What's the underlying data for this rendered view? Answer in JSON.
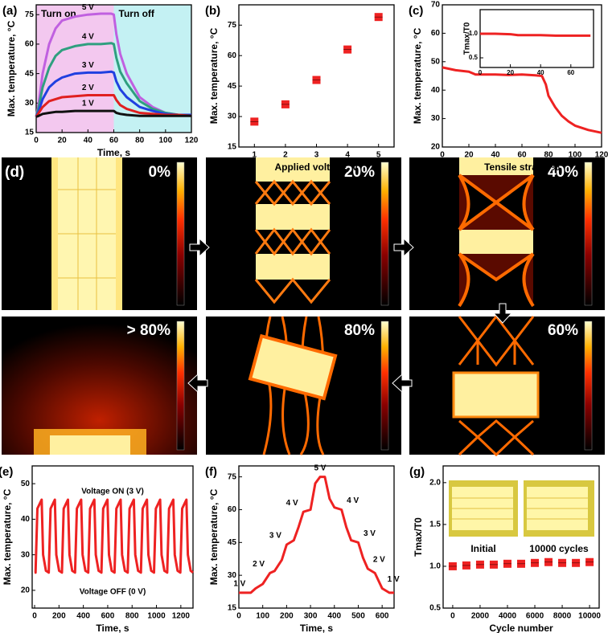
{
  "chart_data": [
    {
      "type": "line",
      "panel_label": "(a)",
      "xlabel": "Time, s",
      "ylabel": "Max. temperature, °C",
      "xlim": [
        0,
        120
      ],
      "xticks": [
        0,
        20,
        40,
        60,
        80,
        100,
        120
      ],
      "ylim": [
        15,
        80
      ],
      "yticks": [
        15,
        30,
        45,
        60,
        75
      ],
      "regions": [
        {
          "label": "Turn on",
          "from": 0,
          "to": 60,
          "color": "#f3c8ef"
        },
        {
          "label": "Turn off",
          "from": 60,
          "to": 120,
          "color": "#c4f1f3"
        }
      ],
      "x": [
        0,
        2,
        5,
        10,
        15,
        20,
        30,
        40,
        50,
        58,
        60,
        62,
        65,
        70,
        80,
        90,
        100,
        110,
        120
      ],
      "series": [
        {
          "name": "5 V",
          "color": "#c060e0",
          "values": [
            23,
            30,
            45,
            60,
            68,
            72,
            74,
            75,
            75.5,
            75.5,
            75,
            65,
            55,
            45,
            33,
            28,
            25,
            24,
            24
          ]
        },
        {
          "name": "4 V",
          "color": "#2f9f7f",
          "values": [
            23,
            28,
            38,
            48,
            54,
            57,
            59,
            60,
            60,
            60.5,
            60,
            53,
            46,
            40,
            31,
            27,
            25,
            24,
            24
          ]
        },
        {
          "name": "3 V",
          "color": "#2040e0",
          "values": [
            23,
            26,
            32,
            38,
            41,
            43,
            45,
            45.5,
            45.5,
            46,
            45.5,
            41,
            37,
            33,
            28,
            26,
            24.5,
            24,
            24
          ]
        },
        {
          "name": "2 V",
          "color": "#e02020",
          "values": [
            23,
            25,
            28,
            31,
            32,
            33,
            33.5,
            34,
            34,
            34,
            34,
            31.5,
            29,
            27,
            25,
            24.5,
            24,
            24,
            23.5
          ]
        },
        {
          "name": "1 V",
          "color": "#111111",
          "values": [
            23,
            23.5,
            24.5,
            25,
            25.5,
            25.5,
            26,
            26,
            26,
            26,
            26,
            25,
            24.5,
            24,
            23.5,
            23.5,
            23.5,
            23.5,
            23.5
          ]
        }
      ]
    },
    {
      "type": "scatter",
      "panel_label": "(b)",
      "xlabel": "Applied voltage, V",
      "ylabel": "Max. temperature, °C",
      "xlim": [
        0.5,
        5.5
      ],
      "xticks": [
        1,
        2,
        3,
        4,
        5
      ],
      "ylim": [
        15,
        85
      ],
      "yticks": [
        15,
        30,
        45,
        60,
        75
      ],
      "color": "#ee2222",
      "x": [
        1,
        2,
        3,
        4,
        5
      ],
      "values": [
        27.5,
        36,
        48,
        63,
        79
      ]
    },
    {
      "type": "line",
      "panel_label": "(c)",
      "xlabel": "Tensile strain, %",
      "ylabel": "Max. temperature, °C",
      "xlim": [
        0,
        120
      ],
      "xticks": [
        0,
        20,
        40,
        60,
        80,
        100,
        120
      ],
      "ylim": [
        20,
        70
      ],
      "yticks": [
        20,
        30,
        40,
        50,
        60,
        70
      ],
      "x": [
        0,
        10,
        20,
        25,
        30,
        40,
        50,
        60,
        70,
        75,
        78,
        80,
        85,
        90,
        95,
        100,
        110,
        120
      ],
      "series": [
        {
          "color": "#ee2222",
          "values": [
            48,
            47,
            46.5,
            45.5,
            45.5,
            45.5,
            45.3,
            45.5,
            45.2,
            45,
            42,
            38,
            34,
            31,
            29,
            27.5,
            26,
            25
          ]
        }
      ],
      "inset": {
        "type": "line",
        "ylabel": "Tmax/T0",
        "xlim": [
          0,
          75
        ],
        "xticks": [
          0,
          20,
          40,
          60
        ],
        "ylim": [
          0.3,
          1.5
        ],
        "yticks": [
          0.5,
          {
            "value": 1,
            "label": "1.0"
          }
        ],
        "x": [
          0,
          10,
          20,
          25,
          30,
          40,
          50,
          60,
          70,
          73
        ],
        "series": [
          {
            "color": "#ee2222",
            "values": [
              1.0,
              1.0,
              0.99,
              0.97,
              0.97,
              0.97,
              0.96,
              0.96,
              0.96,
              0.96
            ]
          }
        ]
      }
    },
    {
      "type": "line",
      "panel_label": "(e)",
      "xlabel": "Time, s",
      "ylabel": "Max. temperature, °C",
      "xlim": [
        -20,
        1300
      ],
      "xticks": [
        0,
        200,
        400,
        600,
        800,
        1000,
        1200
      ],
      "ylim": [
        15,
        55
      ],
      "yticks": [
        20,
        30,
        40,
        50
      ],
      "annotations": [
        "Voltage ON (3 V)",
        "Voltage OFF (0 V)"
      ],
      "x": [
        0,
        8,
        23,
        58,
        70,
        93,
        116,
        131,
        166,
        178,
        201,
        224,
        239,
        274,
        286,
        309,
        332,
        347,
        382,
        394,
        417,
        440,
        455,
        490,
        502,
        525,
        548,
        563,
        598,
        610,
        633,
        656,
        671,
        706,
        718,
        741,
        764,
        779,
        814,
        826,
        849,
        872,
        887,
        922,
        934,
        957,
        980,
        995,
        1030,
        1042,
        1065,
        1088,
        1103,
        1138,
        1150,
        1173,
        1196,
        1211,
        1246,
        1258,
        1281,
        1300
      ],
      "series": [
        {
          "color": "#ee2222",
          "values": [
            25,
            25,
            43,
            45.5,
            30,
            25.5,
            25,
            43,
            45.5,
            30,
            25.5,
            25,
            43,
            45.5,
            30,
            25.5,
            25,
            43,
            45.5,
            30,
            25.5,
            25,
            43,
            45.5,
            30,
            25.5,
            25,
            43,
            45.5,
            30,
            25.5,
            25,
            43,
            45.5,
            30,
            25.5,
            25,
            43,
            45.5,
            30,
            25.5,
            25,
            43,
            45.5,
            30,
            25.5,
            25,
            43,
            45.5,
            30,
            25.5,
            25,
            43,
            45.5,
            30,
            25.5,
            25,
            43,
            45.5,
            30,
            25.5,
            25
          ]
        }
      ]
    },
    {
      "type": "line",
      "panel_label": "(f)",
      "xlabel": "Time, s",
      "ylabel": "Max. temperature, °C",
      "xlim": [
        0,
        650
      ],
      "xticks": [
        0,
        100,
        200,
        300,
        400,
        500,
        600
      ],
      "ylim": [
        15,
        80
      ],
      "yticks": [
        15,
        30,
        45,
        60,
        75
      ],
      "curve_labels": [
        "1 V",
        "2 V",
        "3 V",
        "4 V",
        "5 V",
        "4 V",
        "3 V",
        "2 V",
        "1 V"
      ],
      "x": [
        0,
        50,
        70,
        100,
        130,
        150,
        180,
        200,
        230,
        250,
        270,
        300,
        320,
        340,
        360,
        380,
        400,
        430,
        450,
        470,
        500,
        520,
        540,
        570,
        600,
        630,
        650
      ],
      "series": [
        {
          "color": "#ee2222",
          "values": [
            22,
            22,
            24,
            26,
            31,
            32,
            37,
            44,
            46,
            52,
            59,
            60,
            72,
            75,
            75,
            65,
            61,
            60,
            52,
            46,
            45,
            38,
            33,
            31,
            24,
            22,
            22
          ]
        }
      ]
    },
    {
      "type": "scatter",
      "panel_label": "(g)",
      "xlabel": "Cycle number",
      "ylabel": "Tmax/T0",
      "xlim": [
        -700,
        10700
      ],
      "xticks": [
        0,
        2000,
        4000,
        6000,
        8000,
        10000
      ],
      "ylim": [
        0.5,
        2.2
      ],
      "yticks": [
        0.5,
        {
          "value": 1,
          "label": "1.0"
        },
        1.5,
        {
          "value": 2,
          "label": "2.0"
        }
      ],
      "annotations": [
        "Initial",
        "10000 cycles"
      ],
      "color": "#ee2222",
      "x": [
        0,
        1000,
        2000,
        3000,
        4000,
        5000,
        6000,
        7000,
        8000,
        9000,
        10000
      ],
      "values": [
        1.0,
        1.01,
        1.02,
        1.02,
        1.03,
        1.03,
        1.04,
        1.05,
        1.04,
        1.04,
        1.05
      ]
    }
  ],
  "thermal_images": {
    "label": "(d)",
    "panels": [
      "0%",
      "20%",
      "40%",
      "> 80%",
      "80%",
      "60%"
    ]
  }
}
